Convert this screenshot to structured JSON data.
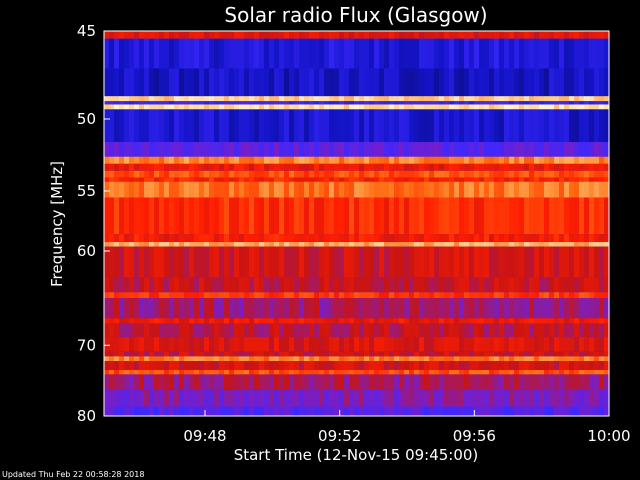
{
  "chart_data": {
    "type": "heatmap",
    "title": "Solar radio Flux (Glasgow)",
    "xlabel": "Start Time (12-Nov-15 09:45:00)",
    "ylabel": "Frequency [MHz]",
    "x_ticks": [
      "09:48",
      "09:52",
      "09:56",
      "10:00"
    ],
    "x_tick_minutes": [
      3,
      7,
      11,
      15
    ],
    "xlim_minutes": [
      0,
      15
    ],
    "y_ticks": [
      45,
      50,
      55,
      60,
      70,
      80
    ],
    "ylim_mhz": [
      45,
      80
    ],
    "y_scale": "reciprocal",
    "colormap": [
      "#0a0a6e",
      "#1414c8",
      "#3c28ff",
      "#781ec8",
      "#c81414",
      "#ff1e00",
      "#ff6e14",
      "#ffc878",
      "#ffffe6"
    ],
    "frequency_bands": [
      {
        "f0": 45.0,
        "f1": 45.4,
        "level": 0.55
      },
      {
        "f0": 45.4,
        "f1": 47.0,
        "level": 0.16
      },
      {
        "f0": 47.0,
        "f1": 48.6,
        "level": 0.12
      },
      {
        "f0": 48.6,
        "f1": 48.9,
        "level": 0.9
      },
      {
        "f0": 48.9,
        "f1": 49.1,
        "level": 0.25
      },
      {
        "f0": 49.1,
        "f1": 49.4,
        "level": 0.92
      },
      {
        "f0": 49.4,
        "f1": 51.5,
        "level": 0.14
      },
      {
        "f0": 51.5,
        "f1": 52.5,
        "level": 0.32
      },
      {
        "f0": 52.5,
        "f1": 53.0,
        "level": 0.78
      },
      {
        "f0": 53.0,
        "f1": 53.5,
        "level": 0.58
      },
      {
        "f0": 53.5,
        "f1": 54.0,
        "level": 0.7
      },
      {
        "f0": 54.0,
        "f1": 54.3,
        "level": 0.62
      },
      {
        "f0": 54.3,
        "f1": 55.5,
        "level": 0.76
      },
      {
        "f0": 55.5,
        "f1": 58.5,
        "level": 0.64
      },
      {
        "f0": 58.5,
        "f1": 59.2,
        "level": 0.6
      },
      {
        "f0": 59.2,
        "f1": 59.6,
        "level": 0.84
      },
      {
        "f0": 59.6,
        "f1": 62.5,
        "level": 0.52
      },
      {
        "f0": 62.5,
        "f1": 64.0,
        "level": 0.5
      },
      {
        "f0": 64.0,
        "f1": 64.6,
        "level": 0.66
      },
      {
        "f0": 64.6,
        "f1": 66.8,
        "level": 0.44
      },
      {
        "f0": 66.8,
        "f1": 67.4,
        "level": 0.58
      },
      {
        "f0": 67.4,
        "f1": 69.0,
        "level": 0.48
      },
      {
        "f0": 69.0,
        "f1": 70.8,
        "level": 0.54
      },
      {
        "f0": 70.8,
        "f1": 71.4,
        "level": 0.5
      },
      {
        "f0": 71.4,
        "f1": 72.0,
        "level": 0.76
      },
      {
        "f0": 72.0,
        "f1": 73.2,
        "level": 0.52
      },
      {
        "f0": 73.2,
        "f1": 73.8,
        "level": 0.7
      },
      {
        "f0": 73.8,
        "f1": 76.0,
        "level": 0.44
      },
      {
        "f0": 76.0,
        "f1": 78.5,
        "level": 0.38
      },
      {
        "f0": 78.5,
        "f1": 80.0,
        "level": 0.3
      }
    ]
  },
  "footer": "Updated Thu Feb 22 00:58:28 2018"
}
